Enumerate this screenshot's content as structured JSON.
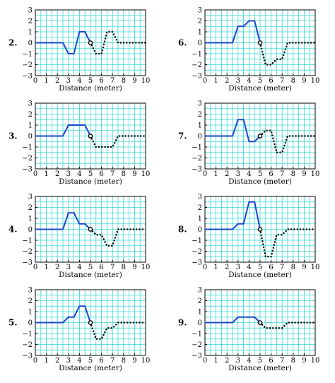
{
  "figure": {
    "background": "#ffffff"
  },
  "style": {
    "grid_color": "#36d6d6",
    "frame_color": "#000000",
    "solid_color": "#1f47cc",
    "dotted_color": "#000000",
    "marker_fill": "#ffffff"
  },
  "chart_data": [
    {
      "type": "line",
      "panel_label": "2.",
      "xlabel": "Distance (meter)",
      "ylabel": "",
      "xlim": [
        0,
        10
      ],
      "ylim": [
        -3,
        3
      ],
      "xticks": [
        "0",
        "1",
        "2",
        "3",
        "4",
        "5",
        "6",
        "7",
        "8",
        "9",
        "10"
      ],
      "yticks": [
        "3",
        "2",
        "1",
        "0",
        "−1",
        "−2",
        "−3"
      ],
      "grid": true,
      "grid_step_x": 0.5,
      "grid_step_y": 0.5,
      "legend": "none",
      "marker": {
        "x": 5,
        "y": 0
      },
      "series": [
        {
          "style": "solid",
          "x": [
            0,
            2.5,
            3,
            3.5,
            4,
            4.5,
            5
          ],
          "y": [
            0,
            0,
            -1,
            -1,
            1,
            1,
            0
          ]
        },
        {
          "style": "dotted",
          "x": [
            5,
            5.5,
            6,
            6.5,
            7,
            7.5,
            8,
            10
          ],
          "y": [
            0,
            -1,
            -1,
            1,
            1,
            0,
            0,
            0
          ]
        }
      ]
    },
    {
      "type": "line",
      "panel_label": "6.",
      "xlabel": "Distance (meter)",
      "ylabel": "",
      "xlim": [
        0,
        10
      ],
      "ylim": [
        -3,
        3
      ],
      "xticks": [
        "0",
        "1",
        "2",
        "3",
        "4",
        "5",
        "6",
        "7",
        "8",
        "9",
        "10"
      ],
      "yticks": [
        "3",
        "2",
        "1",
        "0",
        "−1",
        "−2",
        "−3"
      ],
      "grid": true,
      "grid_step_x": 0.5,
      "grid_step_y": 0.5,
      "legend": "none",
      "marker": {
        "x": 5,
        "y": 0
      },
      "series": [
        {
          "style": "solid",
          "x": [
            0,
            2.5,
            3,
            3.5,
            4,
            4.5,
            5
          ],
          "y": [
            0,
            0,
            1.5,
            1.5,
            2,
            2,
            0
          ]
        },
        {
          "style": "dotted",
          "x": [
            5,
            5.5,
            6,
            6.5,
            7,
            7.5,
            10
          ],
          "y": [
            0,
            -2,
            -2,
            -1.5,
            -1.5,
            0,
            0
          ]
        }
      ]
    },
    {
      "type": "line",
      "panel_label": "3.",
      "xlabel": "Distance (meter)",
      "ylabel": "",
      "xlim": [
        0,
        10
      ],
      "ylim": [
        -3,
        3
      ],
      "xticks": [
        "0",
        "1",
        "2",
        "3",
        "4",
        "5",
        "6",
        "7",
        "8",
        "9",
        "10"
      ],
      "yticks": [
        "3",
        "2",
        "1",
        "0",
        "−1",
        "−2",
        "−3"
      ],
      "grid": true,
      "grid_step_x": 0.5,
      "grid_step_y": 0.5,
      "legend": "none",
      "marker": {
        "x": 5,
        "y": 0
      },
      "series": [
        {
          "style": "solid",
          "x": [
            0,
            2.5,
            3,
            4.5,
            5
          ],
          "y": [
            0,
            0,
            1,
            1,
            0
          ]
        },
        {
          "style": "dotted",
          "x": [
            5,
            5.5,
            7,
            7.5,
            10
          ],
          "y": [
            0,
            -1,
            -1,
            0,
            0
          ]
        }
      ]
    },
    {
      "type": "line",
      "panel_label": "7.",
      "xlabel": "Distance (meter)",
      "ylabel": "",
      "xlim": [
        0,
        10
      ],
      "ylim": [
        -3,
        3
      ],
      "xticks": [
        "0",
        "1",
        "2",
        "3",
        "4",
        "5",
        "6",
        "7",
        "8",
        "9",
        "10"
      ],
      "yticks": [
        "3",
        "2",
        "1",
        "0",
        "−1",
        "−2",
        "−3"
      ],
      "grid": true,
      "grid_step_x": 0.5,
      "grid_step_y": 0.5,
      "legend": "none",
      "marker": {
        "x": 5,
        "y": 0
      },
      "series": [
        {
          "style": "solid",
          "x": [
            0,
            2.5,
            3,
            3.5,
            4,
            4.5,
            5
          ],
          "y": [
            0,
            0,
            1.5,
            1.5,
            -0.5,
            -0.5,
            0
          ]
        },
        {
          "style": "dotted",
          "x": [
            5,
            5.5,
            6,
            6.5,
            7,
            7.5,
            10
          ],
          "y": [
            0,
            0.5,
            0.5,
            -1.5,
            -1.5,
            0,
            0
          ]
        }
      ]
    },
    {
      "type": "line",
      "panel_label": "4.",
      "xlabel": "Distance (meter)",
      "ylabel": "",
      "xlim": [
        0,
        10
      ],
      "ylim": [
        -3,
        3
      ],
      "xticks": [
        "0",
        "1",
        "2",
        "3",
        "4",
        "5",
        "6",
        "7",
        "8",
        "9",
        "10"
      ],
      "yticks": [
        "3",
        "2",
        "1",
        "0",
        "−1",
        "−2",
        "−3"
      ],
      "grid": true,
      "grid_step_x": 0.5,
      "grid_step_y": 0.5,
      "legend": "none",
      "marker": {
        "x": 5,
        "y": 0
      },
      "series": [
        {
          "style": "solid",
          "x": [
            0,
            2.5,
            3,
            3.5,
            4,
            4.5,
            5
          ],
          "y": [
            0,
            0,
            1.5,
            1.5,
            0.5,
            0.5,
            0
          ]
        },
        {
          "style": "dotted",
          "x": [
            5,
            5.5,
            6,
            6.5,
            7,
            7.5,
            10
          ],
          "y": [
            0,
            -0.5,
            -0.5,
            -1.5,
            -1.5,
            0,
            0
          ]
        }
      ]
    },
    {
      "type": "line",
      "panel_label": "8.",
      "xlabel": "Distance (meter)",
      "ylabel": "",
      "xlim": [
        0,
        10
      ],
      "ylim": [
        -3,
        3
      ],
      "xticks": [
        "0",
        "1",
        "2",
        "3",
        "4",
        "5",
        "6",
        "7",
        "8",
        "9",
        "10"
      ],
      "yticks": [
        "3",
        "2",
        "1",
        "0",
        "−1",
        "−2",
        "−3"
      ],
      "grid": true,
      "grid_step_x": 0.5,
      "grid_step_y": 0.5,
      "legend": "none",
      "marker": {
        "x": 5,
        "y": 0
      },
      "series": [
        {
          "style": "solid",
          "x": [
            0,
            2.5,
            3,
            3.5,
            4,
            4.5,
            5
          ],
          "y": [
            0,
            0,
            0.5,
            0.5,
            2.5,
            2.5,
            0
          ]
        },
        {
          "style": "dotted",
          "x": [
            5,
            5.5,
            6,
            6.5,
            7,
            7.5,
            10
          ],
          "y": [
            0,
            -2.5,
            -2.5,
            -0.5,
            -0.5,
            0,
            0
          ]
        }
      ]
    },
    {
      "type": "line",
      "panel_label": "5.",
      "xlabel": "Distance (meter)",
      "ylabel": "",
      "xlim": [
        0,
        10
      ],
      "ylim": [
        -3,
        3
      ],
      "xticks": [
        "0",
        "1",
        "2",
        "3",
        "4",
        "5",
        "6",
        "7",
        "8",
        "9",
        "10"
      ],
      "yticks": [
        "3",
        "2",
        "1",
        "0",
        "−1",
        "−2",
        "−3"
      ],
      "grid": true,
      "grid_step_x": 0.5,
      "grid_step_y": 0.5,
      "legend": "none",
      "marker": {
        "x": 5,
        "y": 0
      },
      "series": [
        {
          "style": "solid",
          "x": [
            0,
            2.5,
            3,
            3.5,
            4,
            4.5,
            5
          ],
          "y": [
            0,
            0,
            0.5,
            0.5,
            1.5,
            1.5,
            0
          ]
        },
        {
          "style": "dotted",
          "x": [
            5,
            5.5,
            6,
            6.5,
            7,
            7.5,
            10
          ],
          "y": [
            0,
            -1.5,
            -1.5,
            -0.5,
            -0.5,
            0,
            0
          ]
        }
      ]
    },
    {
      "type": "line",
      "panel_label": "9.",
      "xlabel": "Distance (meter)",
      "ylabel": "",
      "xlim": [
        0,
        10
      ],
      "ylim": [
        -3,
        3
      ],
      "xticks": [
        "0",
        "1",
        "2",
        "3",
        "4",
        "5",
        "6",
        "7",
        "8",
        "9",
        "10"
      ],
      "yticks": [
        "3",
        "2",
        "1",
        "0",
        "−1",
        "−2",
        "−3"
      ],
      "grid": true,
      "grid_step_x": 0.5,
      "grid_step_y": 0.5,
      "legend": "none",
      "marker": {
        "x": 5,
        "y": 0
      },
      "series": [
        {
          "style": "solid",
          "x": [
            0,
            2.5,
            3,
            4.5,
            5
          ],
          "y": [
            0,
            0,
            0.5,
            0.5,
            0
          ]
        },
        {
          "style": "dotted",
          "x": [
            5,
            5.5,
            7,
            7.5,
            10
          ],
          "y": [
            0,
            -0.5,
            -0.5,
            0,
            0
          ]
        }
      ]
    }
  ]
}
